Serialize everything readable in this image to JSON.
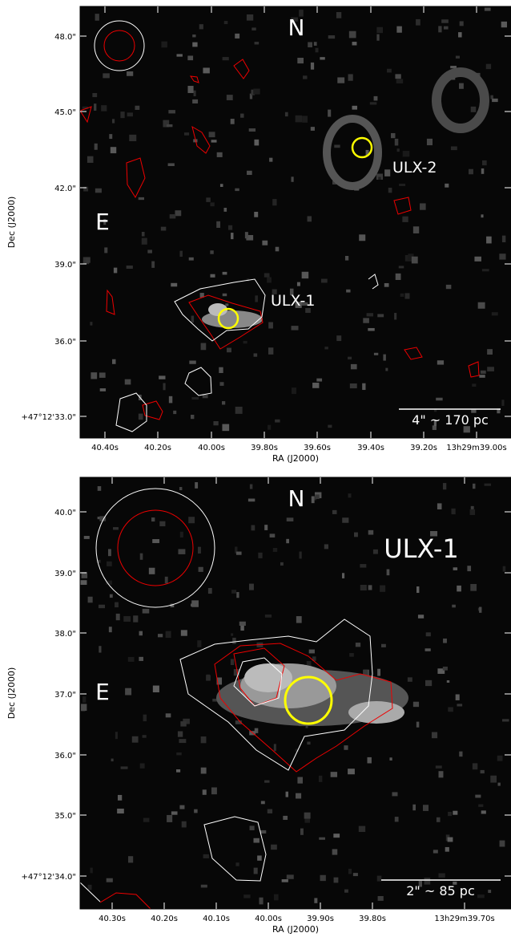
{
  "panels": [
    {
      "compass": {
        "north": "N",
        "east": "E"
      },
      "sources": [
        "ULX-2",
        "ULX-1"
      ],
      "scale_bar": "4\" ~ 170 pc",
      "x_label": "RA (J2000)",
      "y_label": "Dec (J2000)",
      "x_ticks": [
        "40.40s",
        "40.20s",
        "40.00s",
        "39.80s",
        "39.60s",
        "39.40s",
        "39.20s",
        "13h29m39.00s"
      ],
      "y_ticks": [
        "48.0\"",
        "45.0\"",
        "42.0\"",
        "39.0\"",
        "36.0\"",
        "+47°12'33.0\""
      ]
    },
    {
      "compass": {
        "north": "N",
        "east": "E"
      },
      "sources": [
        "ULX-1"
      ],
      "scale_bar": "2\" ~ 85 pc",
      "x_label": "RA (J2000)",
      "y_label": "Dec (J2000)",
      "x_ticks": [
        "40.30s",
        "40.20s",
        "40.10s",
        "40.00s",
        "39.90s",
        "39.80s",
        "13h29m39.70s"
      ],
      "y_ticks": [
        "40.0\"",
        "39.0\"",
        "38.0\"",
        "37.0\"",
        "36.0\"",
        "35.0\"",
        "+47°12'34.0\""
      ]
    }
  ]
}
